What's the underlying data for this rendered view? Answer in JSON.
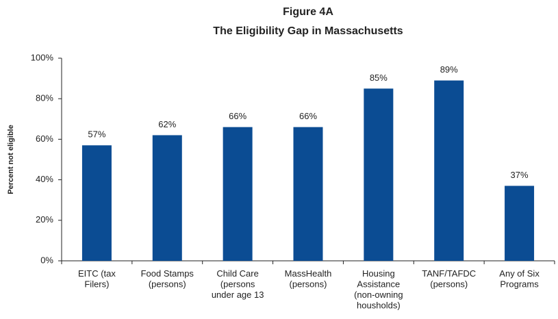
{
  "chart_data": {
    "type": "bar",
    "title": "Figure 4A",
    "subtitle": "The Eligibility Gap in Massachusetts",
    "y_label": "Percent not eligible",
    "categories": [
      "EITC (tax\nFilers)",
      "Food Stamps\n(persons)",
      "Child Care\n(persons\nunder age 13",
      "MassHealth\n(persons)",
      "Housing\nAssistance\n(non-owning\nhousholds)",
      "TANF/TAFDC\n(persons)",
      "Any of Six\nPrograms"
    ],
    "values": [
      57,
      62,
      66,
      66,
      85,
      89,
      37
    ],
    "value_labels": [
      "57%",
      "62%",
      "66%",
      "66%",
      "85%",
      "89%",
      "37%"
    ],
    "color": "#0b4c93",
    "ylim": [
      0,
      100
    ],
    "yticks": [
      {
        "value": 0,
        "label": "0%"
      },
      {
        "value": 20,
        "label": "20%"
      },
      {
        "value": 40,
        "label": "40%"
      },
      {
        "value": 60,
        "label": "60%"
      },
      {
        "value": 80,
        "label": "80%"
      },
      {
        "value": 100,
        "label": "100%"
      }
    ],
    "grid": false
  }
}
